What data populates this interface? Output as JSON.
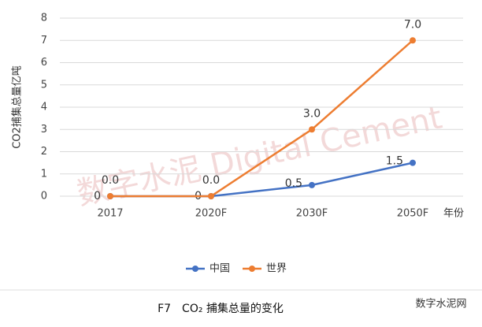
{
  "chart_data": {
    "type": "line",
    "y_label": "CO2捕集总量亿吨",
    "x_label": "年份",
    "categories": [
      "2017",
      "2020F",
      "2030F",
      "2050F"
    ],
    "series": [
      {
        "name": "中国",
        "color": "#4472c4",
        "values": [
          0,
          0,
          0.5,
          1.5
        ],
        "value_labels": [
          "0",
          "0",
          "0.5",
          "1.5"
        ]
      },
      {
        "name": "世界",
        "color": "#ed7d31",
        "values": [
          0,
          0,
          3,
          7
        ],
        "value_labels": [
          "0.0",
          "0.0",
          "3.0",
          "7.0"
        ]
      }
    ],
    "ylim": [
      0,
      8
    ],
    "yticks": [
      0,
      1,
      2,
      3,
      4,
      5,
      6,
      7,
      8
    ],
    "grid": true,
    "legend": "bottom",
    "caption": "F7　CO₂ 捕集总量的变化",
    "watermark": "数字水泥 Digital Cement",
    "source": "数字水泥网"
  }
}
